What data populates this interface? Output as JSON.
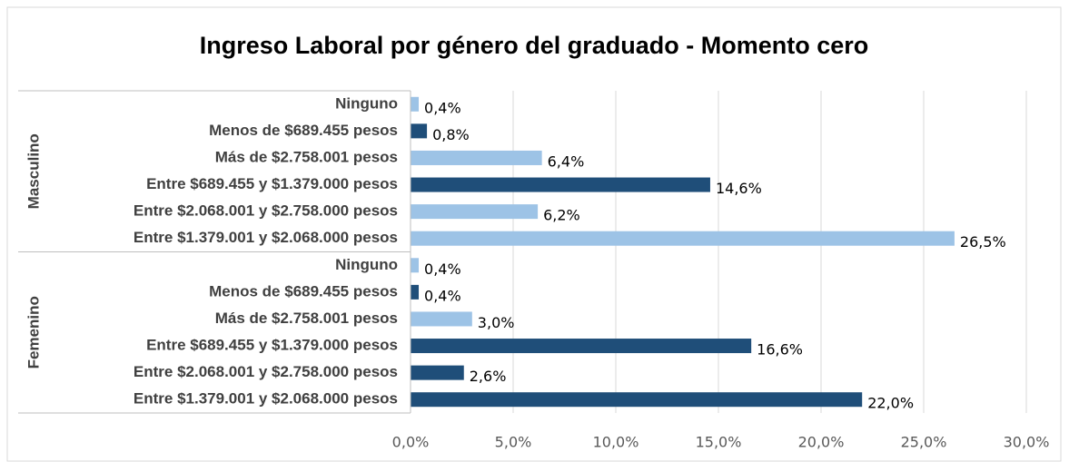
{
  "chart_data": {
    "type": "bar",
    "orientation": "horizontal",
    "title": "Ingreso Laboral por género del graduado - Momento cero",
    "groups": [
      {
        "name": "Masculino",
        "categories": [
          "Ninguno",
          "Menos de $689.455 pesos",
          "Más de $2.758.001 pesos",
          "Entre $689.455 y $1.379.000 pesos",
          "Entre $2.068.001 y $2.758.000 pesos",
          "Entre $1.379.001 y $2.068.000 pesos"
        ],
        "values": [
          0.4,
          0.8,
          6.4,
          14.6,
          6.2,
          26.5
        ],
        "value_labels": [
          "0,4%",
          "0,8%",
          "6,4%",
          "14,6%",
          "6,2%",
          "26,5%"
        ],
        "colors": [
          "#9dc3e6",
          "#1f4e79",
          "#9dc3e6",
          "#1f4e79",
          "#9dc3e6",
          "#9dc3e6"
        ]
      },
      {
        "name": "Femenino",
        "categories": [
          "Ninguno",
          "Menos de $689.455 pesos",
          "Más de $2.758.001 pesos",
          "Entre $689.455 y $1.379.000 pesos",
          "Entre $2.068.001 y $2.758.000 pesos",
          "Entre $1.379.001 y $2.068.000 pesos"
        ],
        "values": [
          0.4,
          0.4,
          3.0,
          16.6,
          2.6,
          22.0
        ],
        "value_labels": [
          "0,4%",
          "0,4%",
          "3,0%",
          "16,6%",
          "2,6%",
          "22,0%"
        ],
        "colors": [
          "#9dc3e6",
          "#1f4e79",
          "#9dc3e6",
          "#1f4e79",
          "#1f4e79",
          "#1f4e79"
        ]
      }
    ],
    "xlim": [
      0,
      30
    ],
    "xticks": [
      {
        "value": 0,
        "label": "0,0%"
      },
      {
        "value": 5,
        "label": "5,0%"
      },
      {
        "value": 10,
        "label": "10,0%"
      },
      {
        "value": 15,
        "label": "15,0%"
      },
      {
        "value": 20,
        "label": "20,0%"
      },
      {
        "value": 25,
        "label": "25,0%"
      },
      {
        "value": 30,
        "label": "30,0%"
      }
    ],
    "grid": true
  }
}
